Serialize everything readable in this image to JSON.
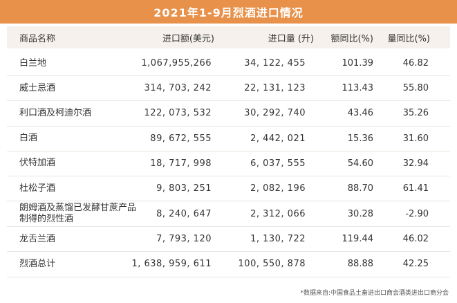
{
  "title": "2021年1-9月烈酒进口情况",
  "headers": {
    "name": "商品名称",
    "amount": "进口额(美元)",
    "volume": "进口量 (升)",
    "amount_pct": "额同比(%)",
    "volume_pct": "量同比(%)"
  },
  "rows": [
    {
      "name": "白兰地",
      "amount": "1,067,955,266",
      "volume": "34, 122, 455",
      "amount_pct": "101.39",
      "volume_pct": "46.82"
    },
    {
      "name": "威士忌酒",
      "amount": "314, 703, 242",
      "volume": "22, 131, 123",
      "amount_pct": "113.43",
      "volume_pct": "55.80"
    },
    {
      "name": "利口酒及柯迪尔酒",
      "amount": "122, 073, 532",
      "volume": "30, 292, 740",
      "amount_pct": "43.46",
      "volume_pct": "35.26"
    },
    {
      "name": "白酒",
      "amount": "89, 672, 555",
      "volume": "2, 442, 021",
      "amount_pct": "15.36",
      "volume_pct": "31.60"
    },
    {
      "name": "伏特加酒",
      "amount": "18, 717, 998",
      "volume": "6, 037, 555",
      "amount_pct": "54.60",
      "volume_pct": "32.94"
    },
    {
      "name": "杜松子酒",
      "amount": "9, 803, 251",
      "volume": "2, 082, 196",
      "amount_pct": "88.70",
      "volume_pct": "61.41"
    },
    {
      "name": "朗姆酒及蒸馏已发酵甘蔗产品制得的烈性酒",
      "amount": "8, 240, 647",
      "volume": "2, 312, 066",
      "amount_pct": "30.28",
      "volume_pct": "-2.90"
    },
    {
      "name": "龙舌兰酒",
      "amount": "7, 793, 120",
      "volume": "1, 130, 722",
      "amount_pct": "119.44",
      "volume_pct": "46.02"
    },
    {
      "name": "烈酒总计",
      "amount": "1, 638, 959, 611",
      "volume": "100, 550, 878",
      "amount_pct": "88.88",
      "volume_pct": "42.25"
    }
  ],
  "footer": "*数据来自:中国食品土畜进出口商会酒类进出口商分会",
  "colors": {
    "title_bg": "#e8914a",
    "header_bg": "#f6f1ed",
    "divider": "#ebe5e0"
  }
}
